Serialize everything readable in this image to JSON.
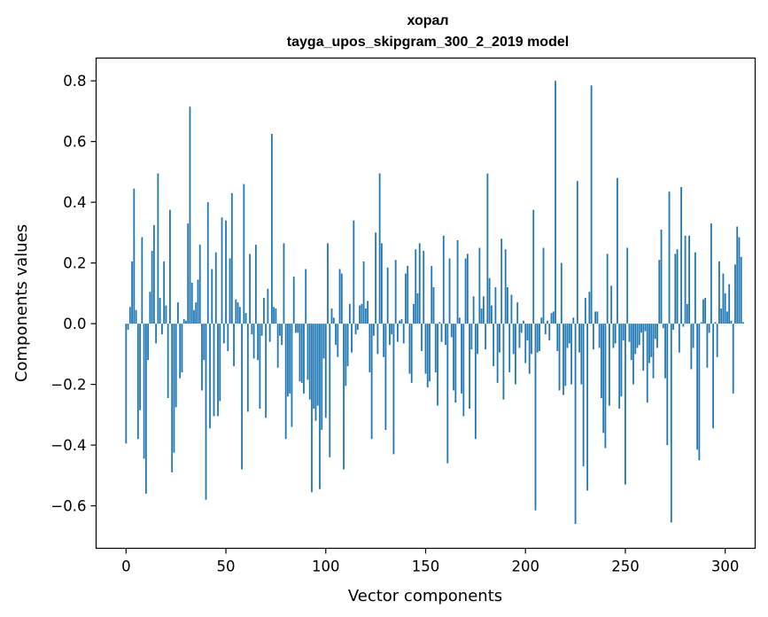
{
  "chart_data": {
    "type": "bar",
    "title": "хорал",
    "subtitle": "tayga_upos_skipgram_300_2_2019 model",
    "xlabel": "Vector components",
    "ylabel": "Components values",
    "xlim": [
      -15,
      315
    ],
    "ylim": [
      -0.74,
      0.875
    ],
    "xticks": [
      0,
      50,
      100,
      150,
      200,
      250,
      300
    ],
    "yticks": [
      -0.6,
      -0.4,
      -0.2,
      0.0,
      0.2,
      0.4,
      0.6,
      0.8
    ],
    "xtick_labels": [
      "0",
      "50",
      "100",
      "150",
      "200",
      "250",
      "300"
    ],
    "ytick_labels": [
      "−0.6",
      "−0.4",
      "−0.2",
      "0.0",
      "0.2",
      "0.4",
      "0.6",
      "0.8"
    ],
    "bar_color": "#1f77b4",
    "values": [
      -0.395,
      -0.02,
      0.055,
      0.205,
      0.445,
      0.045,
      -0.38,
      -0.285,
      0.285,
      -0.445,
      -0.56,
      -0.12,
      0.105,
      0.24,
      0.325,
      -0.065,
      0.495,
      0.085,
      -0.035,
      0.205,
      0.06,
      -0.245,
      0.375,
      -0.49,
      -0.425,
      -0.275,
      0.07,
      -0.18,
      -0.16,
      0.015,
      0.01,
      0.33,
      0.715,
      0.135,
      0.045,
      0.07,
      0.145,
      0.26,
      -0.22,
      -0.12,
      -0.58,
      0.4,
      -0.345,
      0.18,
      -0.305,
      0.235,
      -0.305,
      -0.255,
      0.35,
      -0.065,
      0.34,
      -0.09,
      0.215,
      0.43,
      -0.14,
      0.08,
      0.07,
      0.055,
      -0.48,
      0.46,
      0.035,
      -0.29,
      0.23,
      -0.035,
      -0.115,
      0.26,
      -0.12,
      -0.28,
      -0.04,
      0.085,
      -0.31,
      0.115,
      -0.06,
      0.625,
      0.055,
      0.05,
      -0.145,
      -0.04,
      -0.07,
      0.265,
      -0.38,
      -0.24,
      -0.23,
      -0.34,
      0.155,
      -0.03,
      -0.03,
      -0.19,
      -0.195,
      -0.23,
      0.18,
      -0.185,
      -0.25,
      -0.555,
      -0.28,
      -0.32,
      -0.27,
      -0.545,
      -0.35,
      -0.115,
      -0.31,
      0.265,
      -0.44,
      0.05,
      0.02,
      -0.07,
      -0.11,
      0.18,
      0.165,
      -0.48,
      -0.205,
      -0.14,
      0.065,
      -0.095,
      0.34,
      -0.035,
      -0.02,
      0.06,
      0.065,
      0.205,
      0.05,
      0.075,
      -0.16,
      -0.38,
      -0.04,
      0.3,
      -0.1,
      0.495,
      0.265,
      -0.11,
      -0.35,
      0.185,
      -0.07,
      -0.035,
      -0.43,
      0.21,
      -0.06,
      0.01,
      0.015,
      -0.065,
      0.165,
      0.19,
      -0.165,
      -0.195,
      0.065,
      0.245,
      0.1,
      0.265,
      -0.09,
      0.24,
      -0.165,
      -0.21,
      -0.19,
      0.19,
      0.12,
      -0.16,
      -0.27,
      0.005,
      -0.06,
      0.29,
      -0.07,
      -0.46,
      0.215,
      -0.045,
      -0.22,
      -0.26,
      0.275,
      0.02,
      -0.23,
      -0.305,
      0.215,
      0.23,
      -0.28,
      -0.085,
      0.09,
      -0.38,
      -0.1,
      0.25,
      0.05,
      0.09,
      -0.085,
      0.495,
      0.15,
      0.06,
      -0.14,
      0.12,
      -0.195,
      -0.095,
      0.28,
      -0.25,
      0.245,
      0.12,
      -0.16,
      0.095,
      -0.1,
      -0.2,
      0.07,
      -0.08,
      -0.03,
      0.01,
      -0.13,
      -0.055,
      -0.165,
      -0.1,
      0.375,
      -0.615,
      -0.095,
      -0.09,
      0.02,
      0.25,
      -0.035,
      0.01,
      -0.055,
      0.035,
      0.04,
      0.8,
      -0.09,
      -0.22,
      0.2,
      -0.235,
      -0.205,
      -0.08,
      -0.065,
      -0.2,
      0.02,
      -0.66,
      0.47,
      -0.095,
      -0.2,
      -0.47,
      0.085,
      -0.55,
      0.105,
      0.785,
      -0.085,
      0.04,
      0.04,
      -0.08,
      -0.245,
      -0.36,
      -0.41,
      0.23,
      -0.27,
      0.125,
      -0.08,
      -0.065,
      0.48,
      -0.28,
      -0.24,
      -0.055,
      -0.53,
      0.25,
      -0.06,
      -0.12,
      -0.2,
      -0.1,
      -0.08,
      -0.07,
      -0.03,
      -0.155,
      -0.025,
      -0.26,
      -0.13,
      -0.11,
      -0.18,
      -0.05,
      -0.08,
      0.21,
      0.31,
      -0.015,
      -0.18,
      -0.4,
      0.435,
      -0.655,
      -0.02,
      0.23,
      0.245,
      -0.095,
      0.45,
      -0.01,
      0.29,
      0.065,
      0.29,
      -0.15,
      -0.08,
      0.235,
      -0.415,
      -0.45,
      0.005,
      0.08,
      0.085,
      -0.145,
      -0.03,
      0.33,
      -0.345,
      0.005,
      -0.11,
      0.205,
      0.05,
      0.165,
      0.1,
      0.04,
      0.13,
      0.01,
      -0.23,
      0.195,
      0.32,
      0.285,
      0.22,
      0.005
    ]
  }
}
